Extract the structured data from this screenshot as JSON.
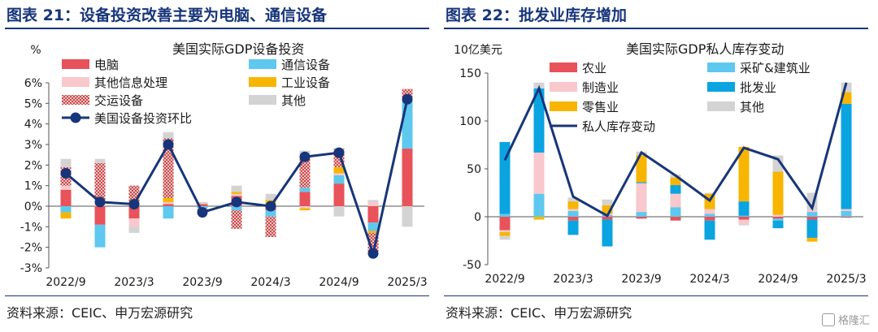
{
  "panels": [
    {
      "title": "图表 21：设备投资改善主要为电脑、通信设备",
      "source": "资料来源：CEIC、申万宏源研究"
    },
    {
      "title": "图表 22：批发业库存增加",
      "source": "资料来源：CEIC、申万宏源研究"
    }
  ],
  "watermark": "格隆汇",
  "chart_data": [
    {
      "type": "bar",
      "stacked": true,
      "title": "美国实际GDP设备投资",
      "ylabel": "%",
      "ylim": [
        -3,
        6
      ],
      "yticks": [
        -3,
        -2,
        -1,
        0,
        1,
        2,
        3,
        4,
        5,
        6
      ],
      "ytick_labels": [
        "-3%",
        "-2%",
        "-1%",
        "0%",
        "1%",
        "2%",
        "3%",
        "4%",
        "5%",
        "6%"
      ],
      "categories": [
        "2022/9",
        "2022/12",
        "2023/3",
        "2023/6",
        "2023/9",
        "2023/12",
        "2024/3",
        "2024/6",
        "2024/9",
        "2024/12",
        "2025/3"
      ],
      "xtick_labels": [
        "2022/9",
        "2023/3",
        "2023/9",
        "2024/3",
        "2024/9",
        "2025/3"
      ],
      "legend_placement": "top-left",
      "grid": false,
      "series": [
        {
          "name": "电脑",
          "kind": "bar",
          "color": "#e8525a",
          "pattern": "solid",
          "values": [
            0.8,
            -0.9,
            -0.6,
            0.1,
            0.1,
            0.5,
            -0.2,
            0.7,
            1.1,
            -0.8,
            2.8
          ]
        },
        {
          "name": "通信设备",
          "kind": "bar",
          "color": "#5ec8ee",
          "pattern": "solid",
          "values": [
            -0.3,
            -1.1,
            0.1,
            -0.6,
            -0.1,
            -0.2,
            -0.3,
            0.2,
            0.4,
            -0.4,
            2.4
          ]
        },
        {
          "name": "其他信息处理",
          "kind": "bar",
          "color": "#f8c8cc",
          "pattern": "solid",
          "values": [
            0.2,
            0.1,
            -0.4,
            0.1,
            0.0,
            0.1,
            0.1,
            -0.1,
            0.1,
            0.2,
            0.1
          ]
        },
        {
          "name": "工业设备",
          "kind": "bar",
          "color": "#f7b500",
          "pattern": "solid",
          "values": [
            -0.3,
            0.0,
            0.1,
            0.2,
            0.0,
            0.1,
            0.2,
            -0.1,
            0.3,
            -0.1,
            0.0
          ]
        },
        {
          "name": "交运设备",
          "kind": "bar",
          "color": "#c94b4b",
          "pattern": "hatch",
          "values": [
            0.9,
            2.0,
            0.8,
            2.9,
            -0.1,
            -0.9,
            -1.0,
            1.6,
            0.9,
            -0.9,
            0.4
          ]
        },
        {
          "name": "其他",
          "kind": "bar",
          "color": "#d3d3d3",
          "pattern": "solid",
          "values": [
            0.4,
            0.2,
            -0.3,
            0.3,
            0.1,
            0.3,
            0.3,
            0.2,
            -0.5,
            0.1,
            -1.0
          ]
        },
        {
          "name": "美国设备投资环比",
          "kind": "line",
          "color": "#17357a",
          "values": [
            1.6,
            0.2,
            0.1,
            3.0,
            -0.3,
            0.2,
            0.0,
            2.4,
            2.6,
            -2.3,
            5.2
          ]
        }
      ]
    },
    {
      "type": "bar",
      "stacked": true,
      "title": "美国实际GDP私人库存变动",
      "ylabel": "10亿美元",
      "ylim": [
        -50,
        150
      ],
      "yticks": [
        -50,
        0,
        50,
        100,
        150
      ],
      "ytick_labels": [
        "-50",
        "0",
        "50",
        "100",
        "150"
      ],
      "categories": [
        "2022/9",
        "2022/12",
        "2023/3",
        "2023/6",
        "2023/9",
        "2023/12",
        "2024/3",
        "2024/6",
        "2024/9",
        "2024/12",
        "2025/3"
      ],
      "xtick_labels": [
        "2022/9",
        "2023/3",
        "2023/9",
        "2024/3",
        "2024/9",
        "2025/3"
      ],
      "legend_placement": "top-left",
      "grid": false,
      "series": [
        {
          "name": "农业",
          "kind": "bar",
          "color": "#e8525a",
          "values": [
            -14,
            0,
            -4,
            -3,
            -2,
            -4,
            -4,
            -3,
            -2,
            -3,
            -1
          ]
        },
        {
          "name": "采矿&建筑业",
          "kind": "bar",
          "color": "#5ec8ee",
          "values": [
            3,
            24,
            6,
            2,
            5,
            10,
            3,
            1,
            -2,
            5,
            6
          ]
        },
        {
          "name": "制造业",
          "kind": "bar",
          "color": "#f8c8cc",
          "values": [
            -2,
            43,
            2,
            1,
            30,
            14,
            5,
            -5,
            2,
            2,
            2
          ]
        },
        {
          "name": "批发业",
          "kind": "bar",
          "color": "#0aa4e0",
          "values": [
            75,
            67,
            -15,
            -28,
            1,
            9,
            -20,
            15,
            -8,
            -19,
            110
          ]
        },
        {
          "name": "零售业",
          "kind": "bar",
          "color": "#f7b500",
          "values": [
            -4,
            -3,
            8,
            9,
            28,
            8,
            16,
            57,
            45,
            -4,
            12
          ]
        },
        {
          "name": "其他",
          "kind": "bar",
          "color": "#d3d3d3",
          "values": [
            -4,
            6,
            4,
            6,
            4,
            3,
            1,
            -1,
            17,
            18,
            10
          ]
        },
        {
          "name": "私人库存变动",
          "kind": "line",
          "color": "#17357a",
          "values": [
            59,
            134,
            21,
            1,
            67,
            43,
            17,
            72,
            60,
            9,
            140
          ]
        }
      ]
    }
  ]
}
